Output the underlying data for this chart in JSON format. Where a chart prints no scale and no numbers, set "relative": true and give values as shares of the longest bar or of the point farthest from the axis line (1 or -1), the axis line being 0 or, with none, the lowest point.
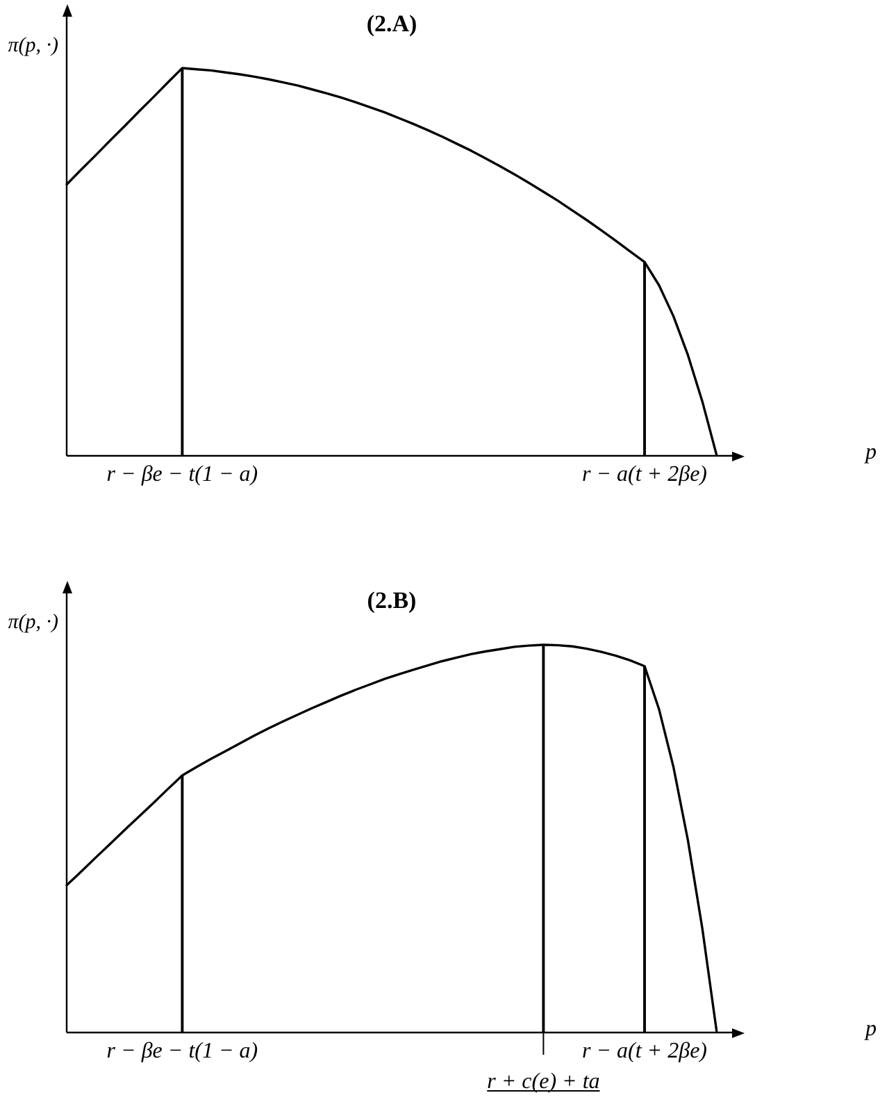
{
  "chart_data": [
    {
      "type": "line",
      "title": "(2.A)",
      "xlabel": "p",
      "ylabel": "π(p, ·)",
      "relative": true,
      "marker": "none",
      "categories": [
        null,
        null,
        null,
        null,
        null,
        null,
        null,
        null,
        "r − βe − t(1 − a)",
        null,
        null,
        null,
        null,
        null,
        null,
        null,
        null,
        null,
        null,
        null,
        null,
        null,
        null,
        null,
        null,
        null,
        null,
        null,
        null,
        null,
        null,
        null,
        null,
        null,
        null,
        null,
        null,
        null,
        null,
        null,
        "r − a(t + 2βe)",
        null,
        null,
        null,
        null,
        null
      ],
      "series": [
        {
          "color": "#000000",
          "values": [
            0.7,
            0.738,
            0.775,
            0.813,
            0.85,
            0.888,
            0.925,
            0.963,
            1.0,
            0.997,
            0.994,
            0.989,
            0.984,
            0.978,
            0.971,
            0.963,
            0.955,
            0.945,
            0.935,
            0.924,
            0.912,
            0.899,
            0.886,
            0.871,
            0.856,
            0.84,
            0.823,
            0.805,
            0.787,
            0.767,
            0.747,
            0.726,
            0.704,
            0.681,
            0.658,
            0.633,
            0.608,
            0.582,
            0.555,
            0.527,
            0.5,
            0.44,
            0.36,
            0.26,
            0.14,
            0
          ]
        },
        {
          "type": "bar",
          "color": "#000000",
          "values": [
            null,
            null,
            null,
            null,
            null,
            null,
            null,
            null,
            1.0,
            null,
            null,
            null,
            null,
            null,
            null,
            null,
            null,
            null,
            null,
            null,
            null,
            null,
            null,
            null,
            null,
            null,
            null,
            null,
            null,
            null,
            null,
            null,
            null,
            null,
            null,
            null,
            null,
            null,
            null,
            null,
            0.5,
            null,
            null,
            null,
            null,
            null
          ]
        }
      ]
    },
    {
      "type": "line",
      "title": "(2.B)",
      "xlabel": "p",
      "ylabel": "π(p, ·)",
      "relative": true,
      "marker": "none",
      "categories": [
        null,
        null,
        null,
        null,
        null,
        null,
        null,
        null,
        "r − βe − t(1 − a)",
        null,
        null,
        null,
        null,
        null,
        null,
        null,
        null,
        null,
        null,
        null,
        null,
        null,
        null,
        null,
        null,
        null,
        null,
        null,
        null,
        null,
        null,
        null,
        null,
        "r + c(e) + ta",
        null,
        null,
        null,
        null,
        null,
        null,
        "r − a(t + 2βe)",
        null,
        null,
        null,
        null,
        null
      ],
      "series": [
        {
          "color": "#000000",
          "values": [
            0.38,
            0.415,
            0.451,
            0.486,
            0.522,
            0.557,
            0.592,
            0.628,
            0.663,
            0.685,
            0.706,
            0.726,
            0.746,
            0.766,
            0.785,
            0.803,
            0.82,
            0.837,
            0.853,
            0.869,
            0.884,
            0.898,
            0.912,
            0.924,
            0.936,
            0.947,
            0.958,
            0.967,
            0.976,
            0.983,
            0.989,
            0.995,
            0.998,
            1.0,
            0.999,
            0.996,
            0.99,
            0.982,
            0.972,
            0.96,
            0.945,
            0.834,
            0.685,
            0.496,
            0.268,
            0
          ]
        },
        {
          "type": "bar",
          "color": "#000000",
          "values": [
            null,
            null,
            null,
            null,
            null,
            null,
            null,
            null,
            0.663,
            null,
            null,
            null,
            null,
            null,
            null,
            null,
            null,
            null,
            null,
            null,
            null,
            null,
            null,
            null,
            null,
            null,
            null,
            null,
            null,
            null,
            null,
            null,
            null,
            1.0,
            null,
            null,
            null,
            null,
            null,
            null,
            0.945,
            null,
            null,
            null,
            null,
            null
          ]
        }
      ]
    }
  ]
}
